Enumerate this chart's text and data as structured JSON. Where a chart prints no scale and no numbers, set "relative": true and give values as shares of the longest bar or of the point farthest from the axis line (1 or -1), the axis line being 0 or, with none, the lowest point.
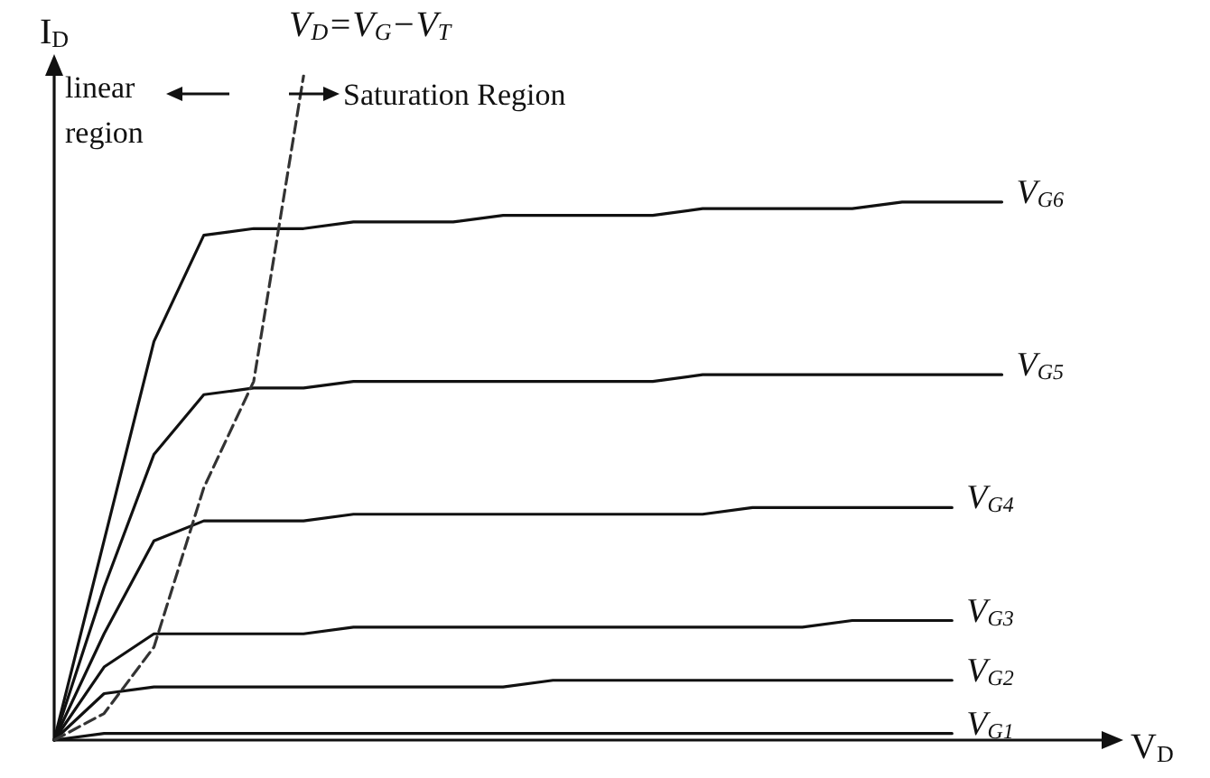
{
  "chart_data": {
    "type": "line",
    "relative": true,
    "xlabel": "V$_{D}$",
    "ylabel": "I$_{D}$",
    "categories": [
      null,
      null,
      null,
      null,
      null,
      null,
      null,
      null,
      null,
      null,
      null,
      null,
      null,
      null,
      null,
      null,
      null,
      null,
      null,
      null,
      null,
      null
    ],
    "annotations": [
      "V$_{D}$=V$_{G}$−V$_{T}$",
      "linear region",
      "Saturation Region"
    ],
    "grid": false,
    "legend": false,
    "marker": "none",
    "line_style": "solid",
    "series": [
      {
        "name": "V$_{G6}$",
        "color": "#111111",
        "values": [
          0,
          0.3,
          0.6,
          0.76,
          0.77,
          0.77,
          0.78,
          0.78,
          0.78,
          0.79,
          0.79,
          0.79,
          0.79,
          0.8,
          0.8,
          0.8,
          0.8,
          0.81,
          0.81,
          0.81,
          null,
          null
        ]
      },
      {
        "name": "V$_{G5}$",
        "color": "#111111",
        "values": [
          0,
          0.23,
          0.43,
          0.52,
          0.53,
          0.53,
          0.54,
          0.54,
          0.54,
          0.54,
          0.54,
          0.54,
          0.54,
          0.55,
          0.55,
          0.55,
          0.55,
          0.55,
          0.55,
          0.55,
          null,
          null
        ]
      },
      {
        "name": "V$_{G4}$",
        "color": "#111111",
        "values": [
          0,
          0.16,
          0.3,
          0.33,
          0.33,
          0.33,
          0.34,
          0.34,
          0.34,
          0.34,
          0.34,
          0.34,
          0.34,
          0.34,
          0.35,
          0.35,
          0.35,
          0.35,
          0.35,
          null,
          null,
          null
        ]
      },
      {
        "name": "V$_{G3}$",
        "color": "#111111",
        "values": [
          0,
          0.11,
          0.16,
          0.16,
          0.16,
          0.16,
          0.17,
          0.17,
          0.17,
          0.17,
          0.17,
          0.17,
          0.17,
          0.17,
          0.17,
          0.17,
          0.18,
          0.18,
          0.18,
          null,
          null,
          null
        ]
      },
      {
        "name": "V$_{G2}$",
        "color": "#111111",
        "values": [
          0,
          0.07,
          0.08,
          0.08,
          0.08,
          0.08,
          0.08,
          0.08,
          0.08,
          0.08,
          0.09,
          0.09,
          0.09,
          0.09,
          0.09,
          0.09,
          0.09,
          0.09,
          0.09,
          null,
          null,
          null
        ]
      },
      {
        "name": "V$_{G1}$",
        "color": "#111111",
        "values": [
          0,
          0.01,
          0.01,
          0.01,
          0.01,
          0.01,
          0.01,
          0.01,
          0.01,
          0.01,
          0.01,
          0.01,
          0.01,
          0.01,
          0.01,
          0.01,
          0.01,
          0.01,
          0.01,
          null,
          null,
          null
        ]
      },
      {
        "color": "#333333",
        "line_style": "dashed",
        "values": [
          0,
          0.04,
          0.14,
          0.38,
          0.54,
          1,
          null,
          null,
          null,
          null,
          null,
          null,
          null,
          null,
          null,
          null,
          null,
          null,
          null,
          null,
          null,
          null
        ]
      }
    ]
  }
}
